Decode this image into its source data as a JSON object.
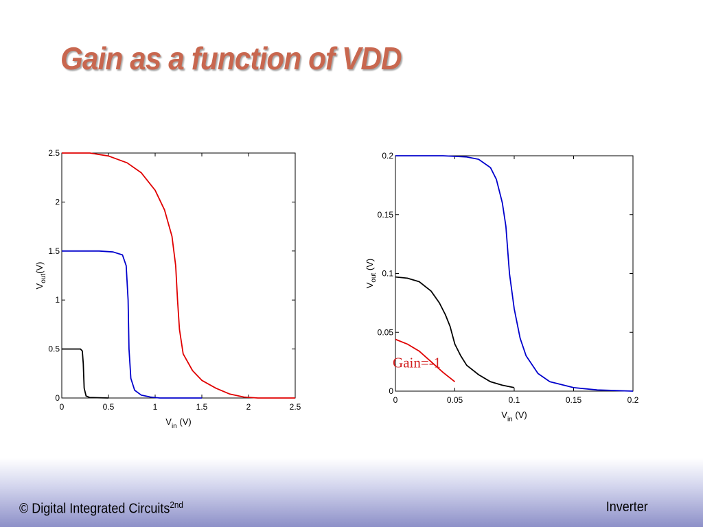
{
  "slide": {
    "title": "Gain as a function of VDD"
  },
  "footer": {
    "left_text": "© Digital Integrated Circuits",
    "left_sup": "2nd",
    "right_text": "Inverter"
  },
  "chart_data": [
    {
      "type": "line",
      "x_label": {
        "main": "V",
        "sub": "in",
        "rest": " (V)"
      },
      "y_label": {
        "main": "V",
        "sub": "out",
        "rest": "(V)"
      },
      "xlim": [
        0,
        2.5
      ],
      "ylim": [
        0,
        2.5
      ],
      "x_ticks": [
        0,
        0.5,
        1,
        1.5,
        2,
        2.5
      ],
      "y_ticks": [
        0,
        0.5,
        1,
        1.5,
        2,
        2.5
      ],
      "grid": false,
      "series": [
        {
          "color": "#e00000",
          "points": [
            [
              0,
              2.5
            ],
            [
              0.3,
              2.5
            ],
            [
              0.5,
              2.47
            ],
            [
              0.7,
              2.4
            ],
            [
              0.85,
              2.3
            ],
            [
              1.0,
              2.12
            ],
            [
              1.1,
              1.92
            ],
            [
              1.18,
              1.65
            ],
            [
              1.22,
              1.35
            ],
            [
              1.24,
              1.0
            ],
            [
              1.26,
              0.7
            ],
            [
              1.3,
              0.45
            ],
            [
              1.4,
              0.28
            ],
            [
              1.5,
              0.18
            ],
            [
              1.65,
              0.1
            ],
            [
              1.8,
              0.04
            ],
            [
              1.95,
              0.01
            ],
            [
              2.1,
              0.0
            ],
            [
              2.5,
              0.0
            ]
          ]
        },
        {
          "color": "#0000cc",
          "points": [
            [
              0,
              1.5
            ],
            [
              0.4,
              1.5
            ],
            [
              0.55,
              1.49
            ],
            [
              0.65,
              1.46
            ],
            [
              0.69,
              1.35
            ],
            [
              0.71,
              1.0
            ],
            [
              0.72,
              0.5
            ],
            [
              0.74,
              0.2
            ],
            [
              0.78,
              0.08
            ],
            [
              0.85,
              0.03
            ],
            [
              0.95,
              0.01
            ],
            [
              1.05,
              0.0
            ],
            [
              1.5,
              0.0
            ]
          ]
        },
        {
          "color": "#000000",
          "points": [
            [
              0,
              0.5
            ],
            [
              0.2,
              0.5
            ],
            [
              0.22,
              0.48
            ],
            [
              0.23,
              0.35
            ],
            [
              0.24,
              0.1
            ],
            [
              0.26,
              0.02
            ],
            [
              0.3,
              0.005
            ],
            [
              0.5,
              0.0
            ]
          ]
        }
      ]
    },
    {
      "type": "line",
      "x_label": {
        "main": "V",
        "sub": "in",
        "rest": " (V)"
      },
      "y_label": {
        "main": "V",
        "sub": "out",
        "rest": " (V)"
      },
      "xlim": [
        0,
        0.2
      ],
      "ylim": [
        0,
        0.2
      ],
      "x_ticks": [
        0,
        0.05,
        0.1,
        0.15,
        0.2
      ],
      "y_ticks": [
        0,
        0.05,
        0.1,
        0.15,
        0.2
      ],
      "grid": false,
      "annotation": {
        "text": "Gain=-1",
        "x": 0.018,
        "y": 0.02
      },
      "series": [
        {
          "color": "#0000cc",
          "points": [
            [
              0,
              0.2
            ],
            [
              0.04,
              0.2
            ],
            [
              0.06,
              0.199
            ],
            [
              0.07,
              0.197
            ],
            [
              0.08,
              0.19
            ],
            [
              0.085,
              0.18
            ],
            [
              0.09,
              0.16
            ],
            [
              0.093,
              0.14
            ],
            [
              0.096,
              0.1
            ],
            [
              0.1,
              0.07
            ],
            [
              0.105,
              0.045
            ],
            [
              0.11,
              0.03
            ],
            [
              0.12,
              0.015
            ],
            [
              0.13,
              0.008
            ],
            [
              0.15,
              0.003
            ],
            [
              0.17,
              0.001
            ],
            [
              0.2,
              0.0
            ]
          ]
        },
        {
          "color": "#000000",
          "points": [
            [
              0,
              0.097
            ],
            [
              0.01,
              0.096
            ],
            [
              0.02,
              0.093
            ],
            [
              0.03,
              0.085
            ],
            [
              0.037,
              0.075
            ],
            [
              0.042,
              0.065
            ],
            [
              0.046,
              0.055
            ],
            [
              0.05,
              0.04
            ],
            [
              0.055,
              0.03
            ],
            [
              0.06,
              0.022
            ],
            [
              0.07,
              0.014
            ],
            [
              0.08,
              0.008
            ],
            [
              0.09,
              0.005
            ],
            [
              0.1,
              0.003
            ]
          ]
        },
        {
          "color": "#e00000",
          "points": [
            [
              0,
              0.044
            ],
            [
              0.01,
              0.04
            ],
            [
              0.02,
              0.034
            ],
            [
              0.03,
              0.025
            ],
            [
              0.04,
              0.016
            ],
            [
              0.05,
              0.008
            ]
          ]
        }
      ]
    }
  ]
}
